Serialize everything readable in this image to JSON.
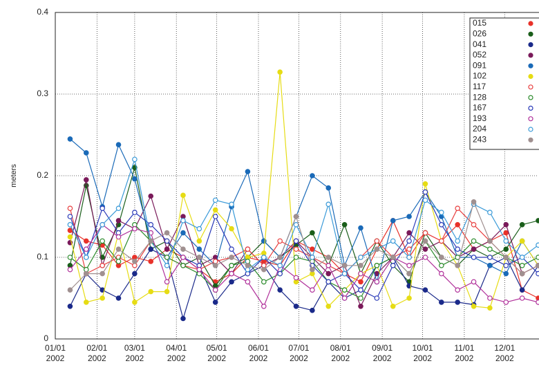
{
  "chart_data": {
    "type": "line",
    "y_label": "meters",
    "xlim": [
      "2002-01-01",
      "2002-12-26"
    ],
    "xticks": [
      {
        "value": "2002-01-01",
        "label": [
          "01/01",
          "2002"
        ]
      },
      {
        "value": "2002-02-01",
        "label": [
          "02/01",
          "2002"
        ]
      },
      {
        "value": "2002-03-01",
        "label": [
          "03/01",
          "2002"
        ]
      },
      {
        "value": "2002-04-01",
        "label": [
          "04/01",
          "2002"
        ]
      },
      {
        "value": "2002-05-01",
        "label": [
          "05/01",
          "2002"
        ]
      },
      {
        "value": "2002-06-01",
        "label": [
          "06/01",
          "2002"
        ]
      },
      {
        "value": "2002-07-01",
        "label": [
          "07/01",
          "2002"
        ]
      },
      {
        "value": "2002-08-01",
        "label": [
          "08/01",
          "2002"
        ]
      },
      {
        "value": "2002-09-01",
        "label": [
          "09/01",
          "2002"
        ]
      },
      {
        "value": "2002-10-01",
        "label": [
          "10/01",
          "2002"
        ]
      },
      {
        "value": "2002-11-01",
        "label": [
          "11/01",
          "2002"
        ]
      },
      {
        "value": "2002-12-01",
        "label": [
          "12/01",
          "2002"
        ]
      }
    ],
    "ylim": [
      0,
      0.4
    ],
    "yticks": [
      0,
      0.1,
      0.2,
      0.3,
      0.4
    ],
    "grid": true,
    "x": [
      "2002-01-12",
      "2002-01-24",
      "2002-02-05",
      "2002-02-17",
      "2002-03-01",
      "2002-03-13",
      "2002-03-25",
      "2002-04-06",
      "2002-04-18",
      "2002-04-30",
      "2002-05-12",
      "2002-05-24",
      "2002-06-05",
      "2002-06-17",
      "2002-06-29",
      "2002-07-11",
      "2002-07-23",
      "2002-08-04",
      "2002-08-16",
      "2002-08-28",
      "2002-09-09",
      "2002-09-21",
      "2002-10-03",
      "2002-10-15",
      "2002-10-27",
      "2002-11-08",
      "2002-11-20",
      "2002-12-02",
      "2002-12-14",
      "2002-12-26"
    ],
    "series": [
      {
        "name": "015",
        "color": "#e8322a",
        "marker": "filled",
        "values": [
          0.133,
          0.12,
          0.115,
          0.09,
          0.1,
          0.095,
          0.11,
          0.1,
          0.085,
          0.07,
          0.08,
          0.1,
          0.095,
          0.09,
          0.12,
          0.11,
          0.1,
          0.08,
          0.07,
          0.11,
          0.145,
          0.1,
          0.13,
          0.12,
          0.14,
          0.11,
          0.12,
          0.13,
          0.06,
          0.05
        ]
      },
      {
        "name": "026",
        "color": "#1a5e1a",
        "marker": "filled",
        "values": [
          0.09,
          0.188,
          0.1,
          0.14,
          0.21,
          0.11,
          0.12,
          0.09,
          0.1,
          0.065,
          0.09,
          0.1,
          0.12,
          0.1,
          0.115,
          0.13,
          0.09,
          0.14,
          0.08,
          0.12,
          0.09,
          0.07,
          0.13,
          0.1,
          0.09,
          0.11,
          0.1,
          0.11,
          0.14,
          0.145
        ]
      },
      {
        "name": "041",
        "color": "#1b2a8a",
        "marker": "filled",
        "values": [
          0.04,
          0.08,
          0.06,
          0.05,
          0.08,
          0.11,
          0.1,
          0.025,
          0.09,
          0.045,
          0.07,
          0.08,
          0.09,
          0.06,
          0.04,
          0.035,
          0.07,
          0.05,
          0.06,
          0.09,
          0.1,
          0.065,
          0.06,
          0.045,
          0.045,
          0.042,
          0.09,
          0.1,
          0.06,
          0.09
        ]
      },
      {
        "name": "052",
        "color": "#7a1a5a",
        "marker": "filled",
        "values": [
          0.118,
          0.195,
          0.09,
          0.145,
          0.135,
          0.175,
          0.11,
          0.15,
          0.09,
          0.1,
          0.08,
          0.11,
          0.09,
          0.1,
          0.12,
          0.1,
          0.08,
          0.09,
          0.04,
          0.08,
          0.1,
          0.13,
          0.11,
          0.12,
          0.1,
          0.11,
          0.12,
          0.14,
          0.08,
          0.09
        ]
      },
      {
        "name": "091",
        "color": "#1a6ab8",
        "marker": "filled",
        "values": [
          0.245,
          0.228,
          0.162,
          0.238,
          0.196,
          0.12,
          0.1,
          0.13,
          0.11,
          0.09,
          0.162,
          0.205,
          0.12,
          0.1,
          0.15,
          0.2,
          0.185,
          0.09,
          0.136,
          0.07,
          0.145,
          0.15,
          0.18,
          0.15,
          0.1,
          0.1,
          0.09,
          0.08,
          0.12,
          0.09
        ]
      },
      {
        "name": "102",
        "color": "#e6dc14",
        "marker": "filled",
        "values": [
          0.125,
          0.045,
          0.05,
          0.13,
          0.045,
          0.058,
          0.058,
          0.176,
          0.12,
          0.158,
          0.135,
          0.1,
          0.105,
          0.327,
          0.07,
          0.08,
          0.04,
          0.06,
          0.08,
          0.09,
          0.04,
          0.05,
          0.19,
          0.12,
          0.09,
          0.04,
          0.038,
          0.1,
          0.12,
          0.09
        ]
      },
      {
        "name": "117",
        "color": "#e84040",
        "marker": "open",
        "values": [
          0.16,
          0.08,
          0.09,
          0.1,
          0.09,
          0.12,
          0.1,
          0.09,
          0.085,
          0.095,
          0.1,
          0.11,
          0.09,
          0.12,
          0.11,
          0.1,
          0.09,
          0.08,
          0.1,
          0.12,
          0.1,
          0.11,
          0.13,
          0.12,
          0.16,
          0.14,
          0.12,
          0.1,
          0.08,
          0.09
        ]
      },
      {
        "name": "128",
        "color": "#2a8a2a",
        "marker": "open",
        "values": [
          0.1,
          0.085,
          0.12,
          0.095,
          0.14,
          0.12,
          0.1,
          0.09,
          0.08,
          0.06,
          0.09,
          0.095,
          0.07,
          0.08,
          0.1,
          0.095,
          0.07,
          0.06,
          0.05,
          0.09,
          0.1,
          0.08,
          0.12,
          0.09,
          0.1,
          0.12,
          0.11,
          0.1,
          0.09,
          0.1
        ]
      },
      {
        "name": "167",
        "color": "#2a3ab8",
        "marker": "open",
        "values": [
          0.15,
          0.1,
          0.16,
          0.13,
          0.155,
          0.14,
          0.12,
          0.1,
          0.09,
          0.15,
          0.11,
          0.08,
          0.1,
          0.08,
          0.12,
          0.09,
          0.07,
          0.08,
          0.06,
          0.05,
          0.09,
          0.12,
          0.18,
          0.14,
          0.11,
          0.1,
          0.1,
          0.09,
          0.1,
          0.08
        ]
      },
      {
        "name": "193",
        "color": "#b0309a",
        "marker": "open",
        "values": [
          0.085,
          0.11,
          0.14,
          0.125,
          0.135,
          0.13,
          0.07,
          0.1,
          0.085,
          0.06,
          0.08,
          0.07,
          0.04,
          0.09,
          0.075,
          0.06,
          0.09,
          0.05,
          0.08,
          0.07,
          0.1,
          0.09,
          0.1,
          0.08,
          0.06,
          0.07,
          0.05,
          0.045,
          0.05,
          0.045
        ]
      },
      {
        "name": "204",
        "color": "#3a9ad8",
        "marker": "open",
        "values": [
          0.14,
          0.1,
          0.14,
          0.16,
          0.22,
          0.12,
          0.09,
          0.145,
          0.135,
          0.17,
          0.165,
          0.085,
          0.1,
          0.09,
          0.14,
          0.1,
          0.165,
          0.08,
          0.1,
          0.11,
          0.12,
          0.1,
          0.17,
          0.155,
          0.12,
          0.165,
          0.155,
          0.12,
          0.1,
          0.115
        ]
      },
      {
        "name": "243",
        "color": "#a09090",
        "marker": "filled",
        "values": [
          0.06,
          0.08,
          0.08,
          0.11,
          0.095,
          0.12,
          0.13,
          0.11,
          0.1,
          0.09,
          0.1,
          0.09,
          0.085,
          0.1,
          0.15,
          0.085,
          0.1,
          0.09,
          0.09,
          0.11,
          0.1,
          0.08,
          0.12,
          0.1,
          0.09,
          0.168,
          0.12,
          0.1,
          0.08,
          0.09
        ]
      }
    ]
  }
}
